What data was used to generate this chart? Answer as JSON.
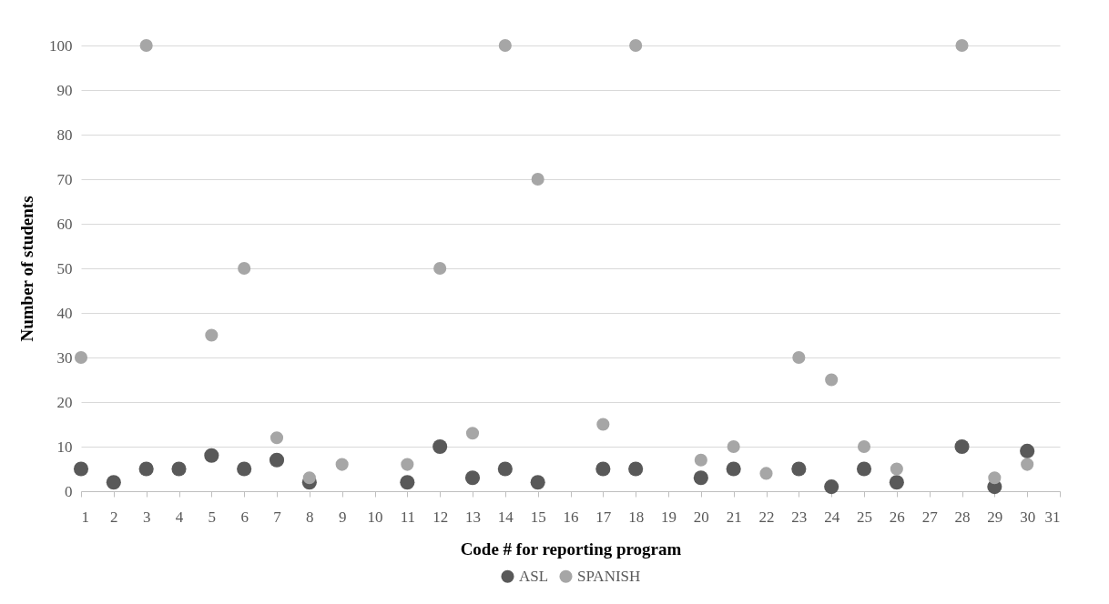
{
  "chart_data": {
    "type": "scatter",
    "xlabel": "Code # for reporting program",
    "ylabel": "Number of students",
    "xlim": [
      1,
      31
    ],
    "xticks": [
      1,
      2,
      3,
      4,
      5,
      6,
      7,
      8,
      9,
      10,
      11,
      12,
      13,
      14,
      15,
      16,
      17,
      18,
      19,
      20,
      21,
      22,
      23,
      24,
      25,
      26,
      27,
      28,
      29,
      30,
      31
    ],
    "ylim": [
      0,
      100
    ],
    "yticks": [
      0,
      10,
      20,
      30,
      40,
      50,
      60,
      70,
      80,
      90,
      100
    ],
    "grid": "y",
    "legend": "bottom",
    "marker": "circle",
    "series": [
      {
        "name": "ASL",
        "color": "#595959",
        "x": [
          1,
          2,
          3,
          4,
          5,
          6,
          7,
          8,
          11,
          12,
          13,
          14,
          15,
          17,
          18,
          20,
          21,
          23,
          24,
          25,
          26,
          28,
          29,
          30
        ],
        "values": [
          5,
          2,
          5,
          5,
          8,
          5,
          7,
          2,
          2,
          10,
          3,
          5,
          2,
          5,
          5,
          3,
          5,
          5,
          1,
          5,
          2,
          10,
          1,
          9
        ]
      },
      {
        "name": "SPANISH",
        "color": "#a6a6a6",
        "x": [
          1,
          3,
          5,
          6,
          7,
          8,
          9,
          11,
          12,
          13,
          14,
          15,
          17,
          18,
          20,
          21,
          22,
          23,
          24,
          25,
          26,
          28,
          29,
          30
        ],
        "values": [
          30,
          100,
          35,
          50,
          12,
          3,
          6,
          6,
          50,
          13,
          100,
          70,
          15,
          100,
          7,
          10,
          4,
          30,
          25,
          10,
          5,
          100,
          3,
          6
        ]
      }
    ]
  }
}
